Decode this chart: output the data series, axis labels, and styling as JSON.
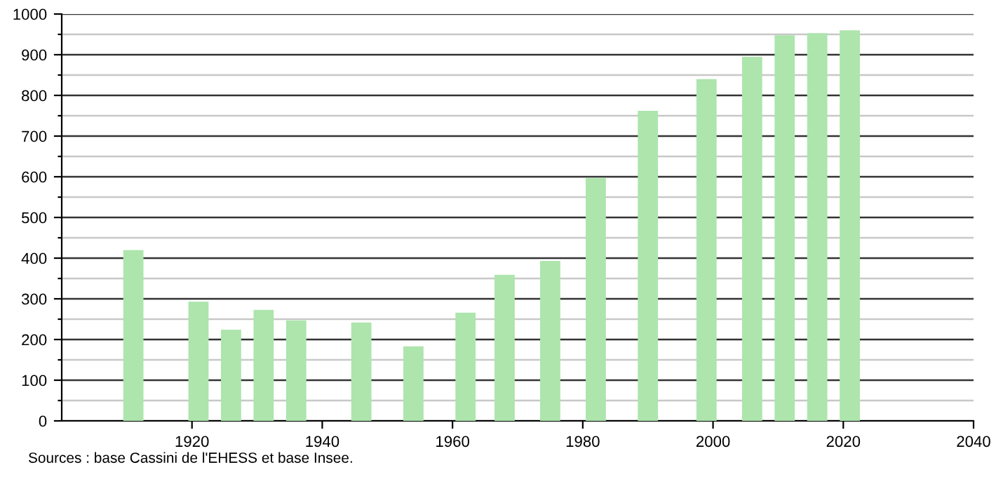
{
  "chart_data": {
    "type": "bar",
    "x": [
      1911,
      1921,
      1926,
      1931,
      1936,
      1946,
      1954,
      1962,
      1968,
      1975,
      1982,
      1990,
      1999,
      2006,
      2011,
      2016,
      2021
    ],
    "values": [
      420,
      293,
      224,
      273,
      247,
      242,
      183,
      266,
      359,
      393,
      597,
      762,
      840,
      895,
      948,
      953,
      960
    ],
    "color": "#ade5ad",
    "xlim": [
      1900,
      2040
    ],
    "xticks": [
      1920,
      1940,
      1960,
      1980,
      2000,
      2020,
      2040
    ],
    "ylim": [
      0,
      1000
    ],
    "yticks": [
      0,
      {
        "value": 50,
        "label": null
      },
      100,
      {
        "value": 150,
        "label": null
      },
      200,
      {
        "value": 250,
        "label": null
      },
      300,
      {
        "value": 350,
        "label": null
      },
      400,
      {
        "value": 450,
        "label": null
      },
      500,
      {
        "value": 550,
        "label": null
      },
      600,
      {
        "value": 650,
        "label": null
      },
      700,
      {
        "value": 750,
        "label": null
      },
      800,
      {
        "value": 850,
        "label": null
      },
      900,
      {
        "value": 950,
        "label": null
      },
      1000
    ],
    "grid": "y",
    "annotations": [
      "Sources : base Cassini de l'EHESS et base Insee."
    ]
  }
}
